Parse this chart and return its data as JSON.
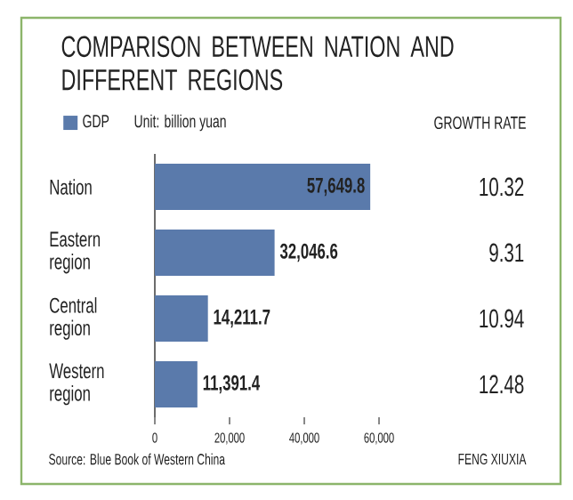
{
  "chart_data": {
    "type": "bar",
    "orientation": "horizontal",
    "title": "COMPARISON BETWEEN NATION AND DIFFERENT REGIONS",
    "subtitle": "Unit: billion yuan",
    "categories": [
      "Nation",
      "Eastern region",
      "Central region",
      "Western region"
    ],
    "series": [
      {
        "name": "GDP",
        "color": "#5a7aab",
        "values": [
          57649.8,
          32046.6,
          14211.7,
          11391.4
        ],
        "value_labels": [
          "57,649.8",
          "32,046.6",
          "14,211.7",
          "11,391.4"
        ]
      }
    ],
    "xlim": [
      0,
      60000
    ],
    "xticks": [
      0,
      {
        "value": 20000,
        "label": "20,000"
      },
      {
        "value": 40000,
        "label": "40,000"
      },
      {
        "value": 60000,
        "label": "60,000"
      }
    ],
    "legend": "top left",
    "annotations": [
      "GROWTH RATE",
      "10.32",
      "9.31",
      "10.94",
      "12.48",
      "Source: Blue Book of Western China",
      "FENG XIUXIA"
    ]
  }
}
